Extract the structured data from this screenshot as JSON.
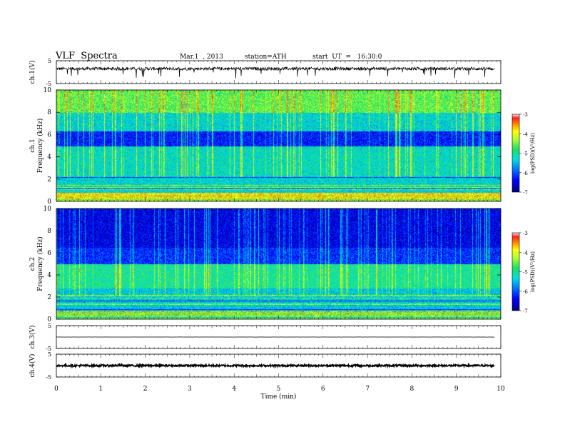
{
  "header": {
    "title": "VLF  Spectra",
    "date": "Mar.1  , 2013",
    "station": "station=ATH",
    "start": "start  UT  =   16:30:0"
  },
  "chart_data": [
    {
      "type": "line",
      "ylabel": "ch.1(V)",
      "yticks": [
        "5",
        "-5"
      ],
      "ylim": [
        -5,
        5
      ],
      "xlim": [
        0,
        10
      ],
      "data_end_min": 9.85,
      "series": [
        {
          "values": "noisy trace near +1.5 V with occasional spikes to about -2 V"
        }
      ],
      "level": 1.5
    },
    {
      "type": "heatmap",
      "ylabel": "ch.1",
      "ylabel2": "Frequency  (kHz)",
      "yticks": [
        "0",
        "2",
        "4",
        "6",
        "8",
        "10"
      ],
      "ylim": [
        0,
        10
      ],
      "xlim": [
        0,
        10
      ],
      "colorbar": {
        "label": "log(PSD)(V²/Hz)",
        "ticks": [
          "-3",
          "-4",
          "-5",
          "-6",
          "-7"
        ],
        "range": [
          -7,
          -3
        ]
      },
      "bands_khz": [
        {
          "range": [
            0,
            0.8
          ],
          "logpsd": -3.8
        },
        {
          "range": [
            0.8,
            2.3
          ],
          "logpsd": -5.3
        },
        {
          "range": [
            2.3,
            5.0
          ],
          "logpsd": -5.2
        },
        {
          "range": [
            5.0,
            6.3
          ],
          "logpsd": -6.3
        },
        {
          "range": [
            6.3,
            8.0
          ],
          "logpsd": -5.3
        },
        {
          "range": [
            8.0,
            10
          ],
          "logpsd": -4.6
        }
      ]
    },
    {
      "type": "heatmap",
      "ylabel": "ch.2",
      "ylabel2": "Frequency  (kHz)",
      "yticks": [
        "0",
        "2",
        "4",
        "6",
        "8",
        "10"
      ],
      "ylim": [
        0,
        10
      ],
      "xlim": [
        0,
        10
      ],
      "colorbar": {
        "label": "log(PSD)(V²/Hz)",
        "ticks": [
          "-3",
          "-4",
          "-5",
          "-6",
          "-7"
        ],
        "range": [
          -7,
          -3
        ]
      },
      "bands_khz": [
        {
          "range": [
            0,
            0.8
          ],
          "logpsd": -4.6
        },
        {
          "range": [
            0.8,
            2.8
          ],
          "logpsd": -5.4
        },
        {
          "range": [
            2.8,
            5.0
          ],
          "logpsd": -5.0
        },
        {
          "range": [
            5.0,
            6.5
          ],
          "logpsd": -6.2
        },
        {
          "range": [
            6.5,
            10
          ],
          "logpsd": -6.5
        }
      ]
    },
    {
      "type": "line",
      "ylabel": "ch.3(V)",
      "yticks": [
        "5",
        "-5"
      ],
      "ylim": [
        -5,
        5
      ],
      "xlim": [
        0,
        10
      ],
      "data_end_min": 9.85,
      "level": 0
    },
    {
      "type": "line",
      "ylabel": "ch.4(V)",
      "yticks": [
        "5",
        "-5"
      ],
      "ylim": [
        -5,
        5
      ],
      "xlim": [
        0,
        10
      ],
      "data_end_min": 9.85,
      "level": 0
    }
  ],
  "xaxis": {
    "label": "Time  (min)",
    "ticks": [
      "0",
      "1",
      "2",
      "3",
      "4",
      "5",
      "6",
      "7",
      "8",
      "9",
      "10"
    ]
  }
}
